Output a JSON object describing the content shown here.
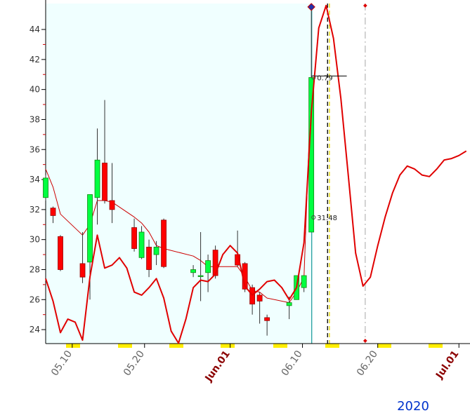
{
  "chart_data": {
    "type": "candlestick",
    "xlim": [
      0,
      57.5
    ],
    "ylim": [
      23.07,
      45.73
    ],
    "yticks": [
      24,
      26,
      28,
      30,
      32,
      34,
      36,
      38,
      40,
      42,
      44
    ],
    "xticks": [
      {
        "value": 3.6,
        "label": "05.10"
      },
      {
        "value": 13.4,
        "label": "05.20"
      },
      {
        "value": 25,
        "label": "Jun.01"
      },
      {
        "value": 34.8,
        "label": "06.10"
      },
      {
        "value": 45,
        "label": "06.20"
      },
      {
        "value": 56,
        "label": "Jul.01"
      }
    ],
    "candles": {
      "x": [
        0,
        1,
        2,
        5,
        6,
        7,
        8,
        9,
        12,
        13,
        14,
        15,
        16,
        20,
        21,
        22,
        23,
        26,
        27,
        28,
        29,
        30,
        33,
        34,
        35,
        36
      ],
      "open": [
        32.8,
        32.1,
        30.2,
        28.4,
        28.5,
        32.8,
        35.1,
        32.6,
        30.8,
        28.8,
        29.5,
        29.0,
        31.3,
        27.8,
        27.6,
        27.8,
        29.3,
        29.0,
        28.4,
        26.8,
        26.3,
        24.8,
        25.6,
        26.0,
        26.8,
        30.5
      ],
      "high": [
        34.3,
        32.2,
        30.3,
        30.5,
        33.0,
        37.4,
        39.3,
        35.1,
        31.4,
        30.9,
        30.0,
        29.9,
        31.4,
        28.3,
        30.5,
        29.0,
        29.6,
        30.6,
        28.5,
        27.0,
        26.5,
        25.0,
        26.2,
        27.6,
        27.6,
        45.5
      ],
      "low": [
        32.6,
        31.1,
        27.9,
        27.1,
        26.0,
        31.0,
        32.4,
        31.1,
        29.2,
        28.7,
        27.5,
        28.3,
        28.1,
        27.5,
        25.9,
        26.5,
        27.4,
        28.2,
        26.5,
        25.0,
        24.4,
        23.6,
        24.7,
        26.0,
        26.5,
        30.5
      ],
      "close": [
        34.1,
        31.6,
        28.0,
        27.5,
        33.0,
        35.3,
        32.6,
        32.0,
        29.4,
        30.5,
        28.0,
        29.5,
        28.2,
        28.0,
        27.6,
        28.6,
        27.6,
        28.3,
        26.7,
        25.7,
        25.9,
        24.6,
        25.8,
        27.6,
        27.6,
        40.8
      ],
      "up_color": "#00ff40",
      "down_color": "#ff0000"
    },
    "lines": [
      {
        "color": "#cc0000",
        "width": 1,
        "x": [
          0,
          1,
          2,
          5,
          6,
          7,
          8,
          9,
          12,
          13,
          14,
          15,
          16,
          20,
          21,
          22,
          23,
          26,
          27,
          28,
          29,
          30,
          33,
          34,
          35,
          36
        ],
        "values": [
          34.7,
          33.5,
          31.7,
          30.3,
          31.0,
          32.6,
          32.6,
          32.5,
          31.5,
          31.1,
          30.5,
          29.6,
          29.4,
          28.9,
          28.6,
          28.2,
          28.2,
          28.2,
          27.5,
          26.6,
          26.5,
          26.1,
          25.8,
          26.5,
          27.5,
          40.8
        ]
      },
      {
        "color": "#e00000",
        "width": 2,
        "x": [
          0,
          1,
          2,
          3,
          4,
          5,
          6,
          7,
          8,
          9,
          10,
          11,
          12,
          13,
          14,
          15,
          16,
          17,
          18,
          19,
          20,
          21,
          22,
          23,
          24,
          25,
          26,
          27,
          28,
          29,
          30,
          31,
          32,
          33,
          34,
          35,
          36,
          37,
          38,
          39,
          40,
          41,
          42,
          43,
          44,
          45,
          46,
          47,
          48,
          49,
          50,
          51,
          52,
          53,
          54,
          55,
          56,
          57
        ],
        "values": [
          27.4,
          25.9,
          23.8,
          24.7,
          24.5,
          23.3,
          27.5,
          30.3,
          28.1,
          28.3,
          28.8,
          28.1,
          26.5,
          26.3,
          26.8,
          27.4,
          26.1,
          23.9,
          23.1,
          24.7,
          26.8,
          27.3,
          27.2,
          27.7,
          29.0,
          29.6,
          29.1,
          26.9,
          26.3,
          26.7,
          27.2,
          27.3,
          26.8,
          26.0,
          26.8,
          29.8,
          38.5,
          44.1,
          45.6,
          43.4,
          39.4,
          34.3,
          29.1,
          26.9,
          27.5,
          29.6,
          31.5,
          33.1,
          34.3,
          34.9,
          34.7,
          34.3,
          34.2,
          34.7,
          35.3,
          35.4,
          35.6,
          35.9
        ]
      }
    ],
    "vlines": [
      {
        "x": 36.05,
        "color": "#2aa0a0",
        "dash": "none"
      },
      {
        "x": 38.2,
        "color": "#000000",
        "dash": "6,4"
      },
      {
        "x": 38.45,
        "color": "#e6d800",
        "dash": "6,4"
      },
      {
        "x": 43.3,
        "color": "#bbbbbb",
        "dash": "10,4,2,4"
      }
    ],
    "hline": {
      "y": 40.9,
      "x": [
        36.05,
        40.8
      ]
    },
    "annotations": [
      {
        "text": "0.79",
        "x": 36.3,
        "y": 40.8
      },
      {
        "text": "31.48",
        "x": 36.3,
        "y": 31.48
      }
    ],
    "year_label": "2020"
  }
}
